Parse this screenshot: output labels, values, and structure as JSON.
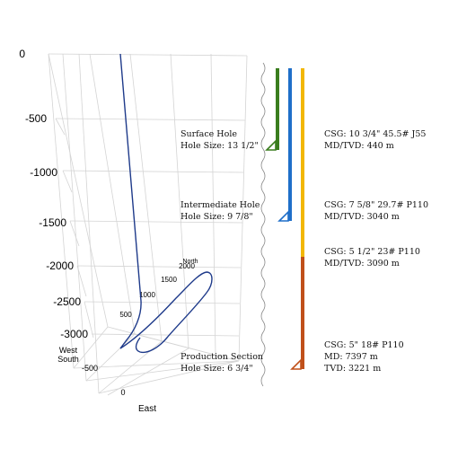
{
  "plot": {
    "vertical_ticks": [
      "0",
      "-500",
      "-1000",
      "-1500",
      "-2000",
      "-2500",
      "-3000"
    ],
    "north_ticks": [
      "500",
      "1000",
      "1500",
      "2000"
    ],
    "north_label": "North",
    "west_ticks": [
      "0",
      "-500"
    ],
    "west_label": "West",
    "south_label": "South",
    "east_label": "East"
  },
  "casing": [
    {
      "name": "surface",
      "color": "#3a7d1e"
    },
    {
      "name": "intermediate",
      "color": "#1f6fc9"
    },
    {
      "name": "production",
      "color": "#f2b705"
    },
    {
      "name": "liner",
      "color": "#c0501a"
    }
  ],
  "well_path_color": "#1e3a8a",
  "sections": [
    {
      "left_line1": "Surface Hole",
      "left_line2": "Hole Size: 13 1/2\"",
      "right_line1": "CSG: 10 3/4\" 45.5# J55",
      "right_line2": "MD/TVD: 440 m",
      "right_line3": ""
    },
    {
      "left_line1": "Intermediate Hole",
      "left_line2": "Hole Size: 9 7/8\"",
      "right_line1": "CSG: 7 5/8\" 29.7# P110",
      "right_line2": "MD/TVD: 3040 m",
      "right_line3": ""
    },
    {
      "left_line1": "",
      "left_line2": "",
      "right_line1": "CSG: 5 1/2\" 23# P110",
      "right_line2": "MD/TVD: 3090 m",
      "right_line3": ""
    },
    {
      "left_line1": "Production Section",
      "left_line2": "Hole Size: 6 3/4\"",
      "right_line1": "CSG: 5\" 18# P110",
      "right_line2": "MD: 7397 m",
      "right_line3": "TVD: 3221 m"
    }
  ]
}
